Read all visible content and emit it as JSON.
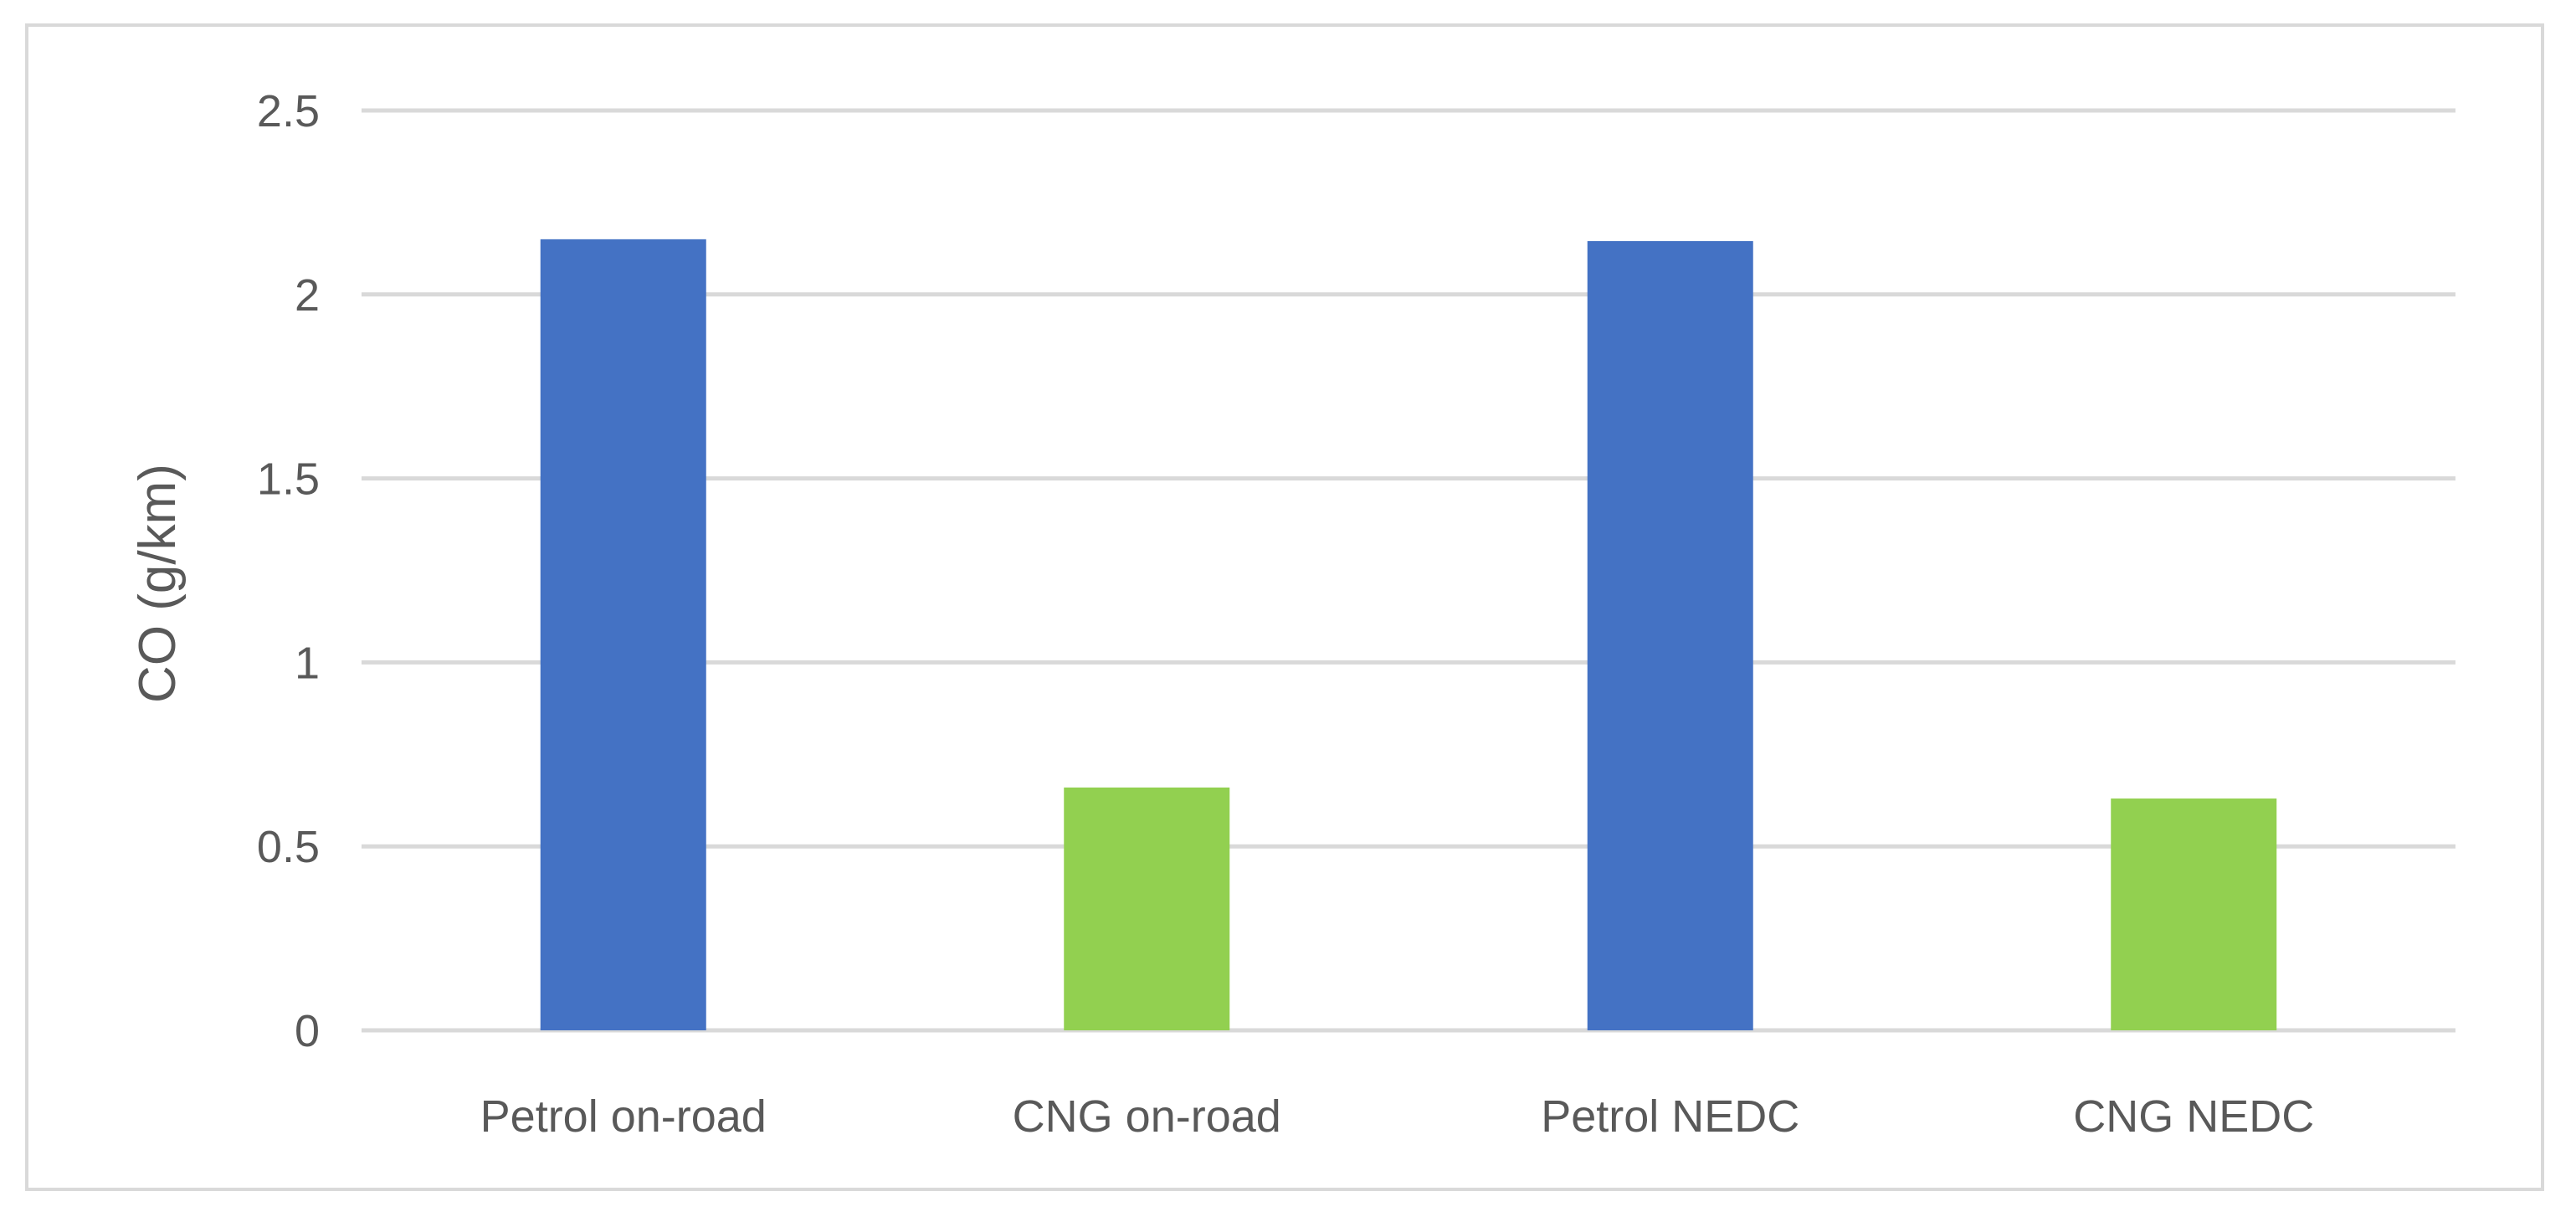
{
  "chart_data": {
    "type": "bar",
    "title": "",
    "xlabel": "",
    "ylabel": "CO (g/km)",
    "categories": [
      "Petrol on-road",
      "CNG on-road",
      "Petrol NEDC",
      "CNG NEDC"
    ],
    "values": [
      2.15,
      0.66,
      2.145,
      0.63
    ],
    "bar_colors": [
      "#4472c4",
      "#92d050",
      "#4472c4",
      "#92d050"
    ],
    "ylim": [
      0,
      2.5
    ],
    "yticks": [
      "0",
      "0.5",
      "1",
      "1.5",
      "2",
      "2.5"
    ],
    "grid": true,
    "legend": "none"
  },
  "colors": {
    "petrol": "#4472c4",
    "cng": "#92d050",
    "grid": "#d9d9d9",
    "text": "#595959"
  }
}
